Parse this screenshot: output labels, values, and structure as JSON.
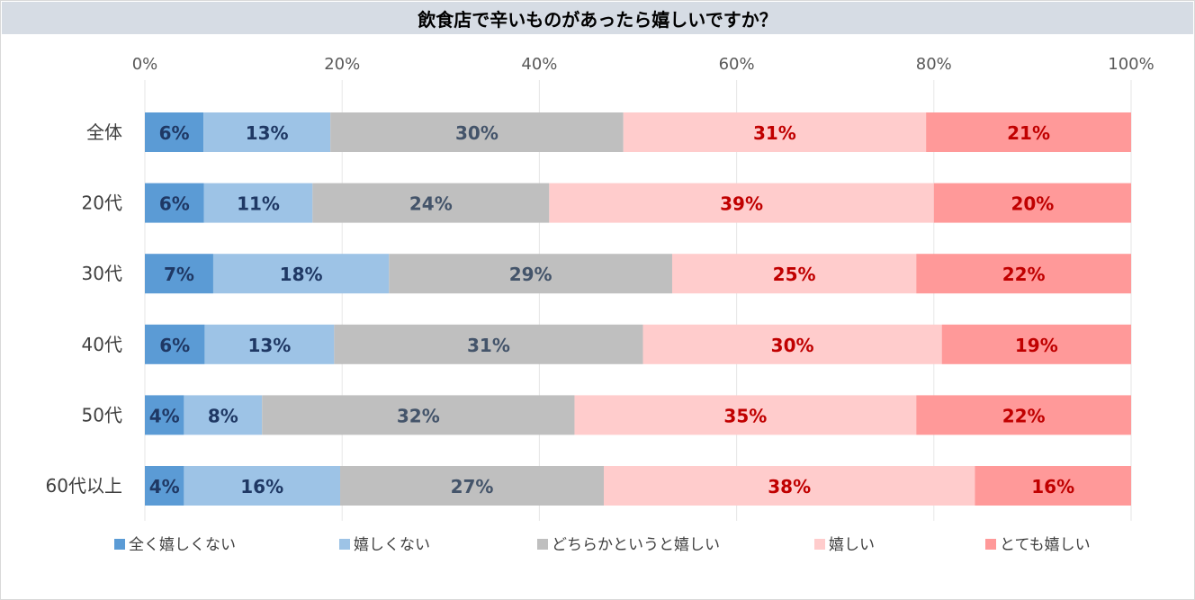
{
  "chart_data": {
    "type": "bar",
    "orientation": "horizontal",
    "stacked": true,
    "percent_stacked": true,
    "title": "飲食店で辛いものがあったら嬉しいですか？",
    "xlim": [
      0,
      100
    ],
    "x_ticks": [
      "0%",
      "20%",
      "40%",
      "60%",
      "80%",
      "100%"
    ],
    "categories": [
      "全体",
      "20代",
      "30代",
      "40代",
      "50代",
      "60代以上"
    ],
    "series": [
      {
        "name": "全く嬉しくない",
        "color": "#5b9bd5",
        "label_color": "#1f3864",
        "values": [
          6,
          6,
          7,
          6,
          4,
          4
        ]
      },
      {
        "name": "嬉しくない",
        "color": "#9dc3e6",
        "label_color": "#1f3864",
        "values": [
          13,
          11,
          18,
          13,
          8,
          16
        ]
      },
      {
        "name": "どちらかというと嬉しい",
        "color": "#bfbfbf",
        "label_color": "#44546a",
        "values": [
          30,
          24,
          29,
          31,
          32,
          27
        ]
      },
      {
        "name": "嬉しい",
        "color": "#ffcccc",
        "label_color": "#c00000",
        "values": [
          31,
          39,
          25,
          30,
          35,
          38
        ]
      },
      {
        "name": "とても嬉しい",
        "color": "#ff9999",
        "label_color": "#c00000",
        "values": [
          21,
          20,
          22,
          19,
          22,
          16
        ]
      }
    ],
    "data_labels": [
      [
        "6%",
        "13%",
        "30%",
        "31%",
        "21%"
      ],
      [
        "6%",
        "11%",
        "24%",
        "39%",
        "20%"
      ],
      [
        "7%",
        "18%",
        "29%",
        "25%",
        "22%"
      ],
      [
        "6%",
        "13%",
        "31%",
        "30%",
        "19%"
      ],
      [
        "4%",
        "8%",
        "32%",
        "35%",
        "22%"
      ],
      [
        "4%",
        "16%",
        "27%",
        "38%",
        "16%"
      ]
    ],
    "legend_position": "bottom",
    "grid": true
  }
}
